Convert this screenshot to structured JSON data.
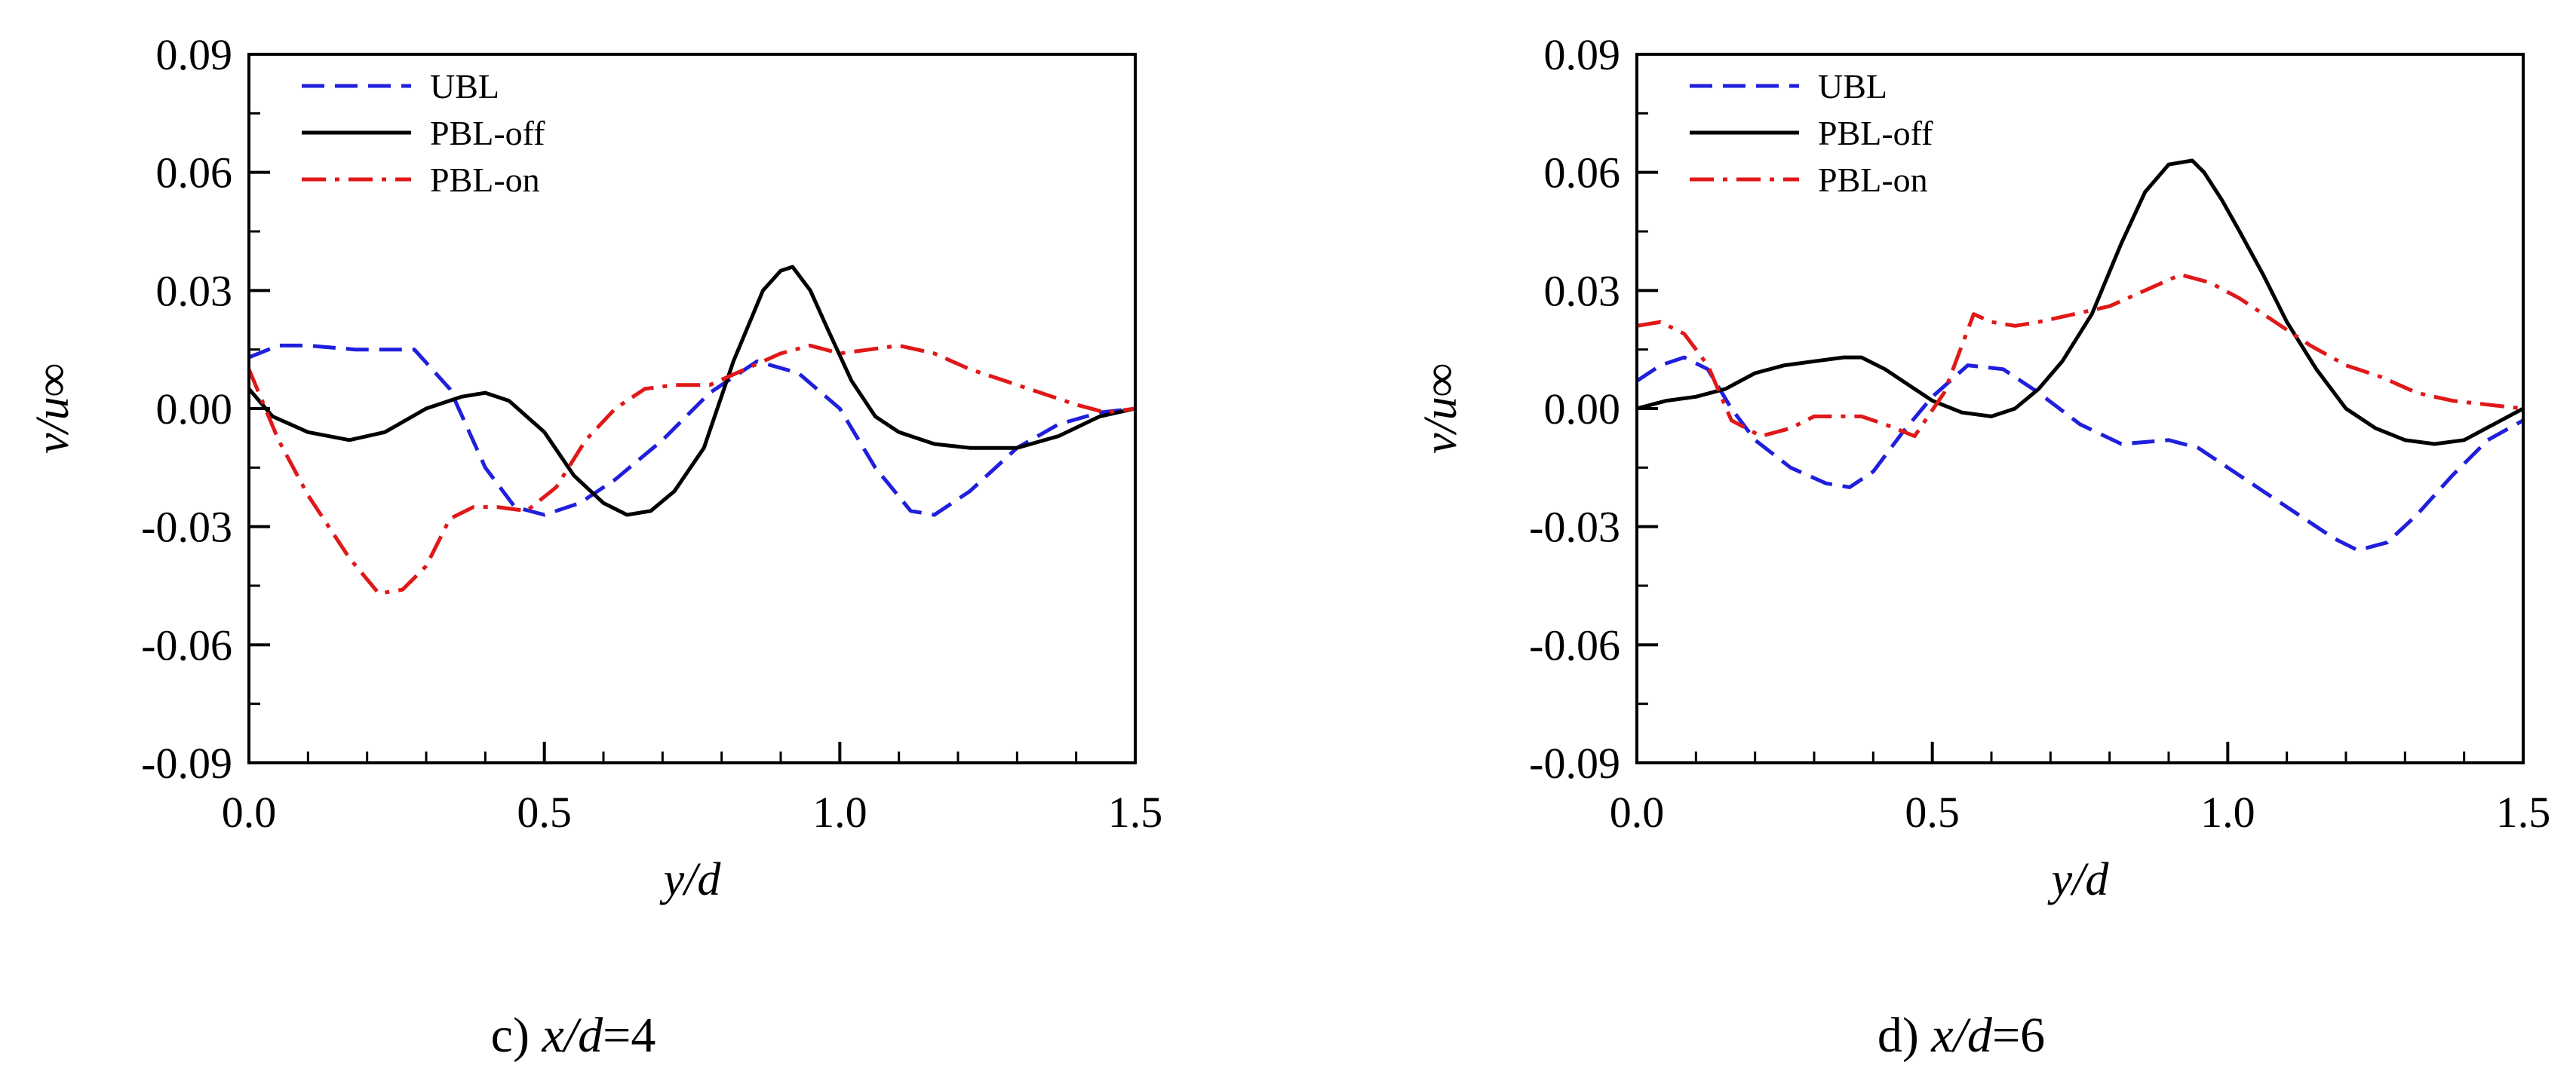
{
  "chart_data": [
    {
      "type": "line",
      "caption": {
        "prefix": "c) ",
        "var": "x/d",
        "suffix": "=4"
      },
      "xlabel": "y/d",
      "ylabel": "v/u∞",
      "xlim": [
        0,
        1.5
      ],
      "ylim": [
        -0.09,
        0.09
      ],
      "xticks": [
        0.0,
        0.5,
        1.0,
        1.5
      ],
      "xtick_labels": [
        "0.0",
        "0.5",
        "1.0",
        "1.5"
      ],
      "yticks": [
        -0.09,
        -0.06,
        -0.03,
        0.0,
        0.03,
        0.06,
        0.09
      ],
      "ytick_labels": [
        "-0.09",
        "-0.06",
        "-0.03",
        "0.00",
        "0.03",
        "0.06",
        "0.09"
      ],
      "legend_position": "top-left",
      "series": [
        {
          "name": "UBL",
          "color": "#1f1fdc",
          "dash": "dashed",
          "x": [
            0.0,
            0.05,
            0.1,
            0.18,
            0.28,
            0.34,
            0.4,
            0.45,
            0.5,
            0.56,
            0.62,
            0.7,
            0.78,
            0.86,
            0.93,
            1.0,
            1.06,
            1.12,
            1.16,
            1.22,
            1.3,
            1.37,
            1.44,
            1.5
          ],
          "y": [
            0.013,
            0.016,
            0.016,
            0.015,
            0.015,
            0.005,
            -0.015,
            -0.025,
            -0.027,
            -0.024,
            -0.018,
            -0.008,
            0.004,
            0.012,
            0.009,
            0.0,
            -0.015,
            -0.026,
            -0.027,
            -0.021,
            -0.01,
            -0.004,
            -0.001,
            0.0
          ]
        },
        {
          "name": "PBL-off",
          "color": "#000000",
          "dash": "solid",
          "x": [
            0.0,
            0.04,
            0.1,
            0.17,
            0.23,
            0.3,
            0.36,
            0.4,
            0.44,
            0.5,
            0.55,
            0.6,
            0.64,
            0.68,
            0.72,
            0.77,
            0.82,
            0.87,
            0.9,
            0.92,
            0.95,
            0.98,
            1.02,
            1.06,
            1.1,
            1.16,
            1.22,
            1.3,
            1.37,
            1.44,
            1.5
          ],
          "y": [
            0.005,
            -0.002,
            -0.006,
            -0.008,
            -0.006,
            0.0,
            0.003,
            0.004,
            0.002,
            -0.006,
            -0.017,
            -0.024,
            -0.027,
            -0.026,
            -0.021,
            -0.01,
            0.012,
            0.03,
            0.035,
            0.036,
            0.03,
            0.02,
            0.007,
            -0.002,
            -0.006,
            -0.009,
            -0.01,
            -0.01,
            -0.007,
            -0.002,
            0.0
          ]
        },
        {
          "name": "PBL-on",
          "color": "#e01818",
          "dash": "dash-dot",
          "x": [
            0.0,
            0.05,
            0.1,
            0.17,
            0.22,
            0.26,
            0.3,
            0.34,
            0.38,
            0.42,
            0.47,
            0.52,
            0.57,
            0.62,
            0.67,
            0.72,
            0.78,
            0.84,
            0.9,
            0.95,
            1.0,
            1.05,
            1.1,
            1.16,
            1.22,
            1.28,
            1.34,
            1.4,
            1.45,
            1.5
          ],
          "y": [
            0.01,
            -0.008,
            -0.022,
            -0.038,
            -0.047,
            -0.046,
            -0.04,
            -0.028,
            -0.025,
            -0.025,
            -0.026,
            -0.02,
            -0.008,
            0.0,
            0.005,
            0.006,
            0.006,
            0.01,
            0.014,
            0.016,
            0.014,
            0.015,
            0.016,
            0.014,
            0.01,
            0.007,
            0.004,
            0.001,
            -0.001,
            0.0
          ]
        }
      ]
    },
    {
      "type": "line",
      "caption": {
        "prefix": "d) ",
        "var": "x/d",
        "suffix": "=6"
      },
      "xlabel": "y/d",
      "ylabel": "v/u∞",
      "xlim": [
        0,
        1.5
      ],
      "ylim": [
        -0.09,
        0.09
      ],
      "xticks": [
        0.0,
        0.5,
        1.0,
        1.5
      ],
      "xtick_labels": [
        "0.0",
        "0.5",
        "1.0",
        "1.5"
      ],
      "yticks": [
        -0.09,
        -0.06,
        -0.03,
        0.0,
        0.03,
        0.06,
        0.09
      ],
      "ytick_labels": [
        "-0.09",
        "-0.06",
        "-0.03",
        "0.00",
        "0.03",
        "0.06",
        "0.09"
      ],
      "legend_position": "top-left",
      "series": [
        {
          "name": "UBL",
          "color": "#1f1fdc",
          "dash": "dashed",
          "x": [
            0.0,
            0.04,
            0.08,
            0.12,
            0.16,
            0.2,
            0.26,
            0.32,
            0.36,
            0.4,
            0.45,
            0.5,
            0.56,
            0.62,
            0.68,
            0.75,
            0.82,
            0.9,
            0.95,
            1.0,
            1.06,
            1.12,
            1.18,
            1.22,
            1.27,
            1.32,
            1.38,
            1.44,
            1.5
          ],
          "y": [
            0.007,
            0.011,
            0.013,
            0.01,
            0.0,
            -0.008,
            -0.015,
            -0.019,
            -0.02,
            -0.016,
            -0.006,
            0.003,
            0.011,
            0.01,
            0.004,
            -0.004,
            -0.009,
            -0.008,
            -0.01,
            -0.015,
            -0.021,
            -0.027,
            -0.033,
            -0.036,
            -0.034,
            -0.027,
            -0.017,
            -0.008,
            -0.003
          ]
        },
        {
          "name": "PBL-off",
          "color": "#000000",
          "dash": "solid",
          "x": [
            0.0,
            0.05,
            0.1,
            0.15,
            0.2,
            0.25,
            0.3,
            0.35,
            0.38,
            0.42,
            0.46,
            0.5,
            0.55,
            0.6,
            0.64,
            0.68,
            0.72,
            0.77,
            0.82,
            0.86,
            0.9,
            0.94,
            0.96,
            0.99,
            1.02,
            1.06,
            1.1,
            1.15,
            1.2,
            1.25,
            1.3,
            1.35,
            1.4,
            1.45,
            1.5
          ],
          "y": [
            0.0,
            0.002,
            0.003,
            0.005,
            0.009,
            0.011,
            0.012,
            0.013,
            0.013,
            0.01,
            0.006,
            0.002,
            -0.001,
            -0.002,
            0.0,
            0.005,
            0.012,
            0.024,
            0.042,
            0.055,
            0.062,
            0.063,
            0.06,
            0.053,
            0.045,
            0.034,
            0.022,
            0.01,
            0.0,
            -0.005,
            -0.008,
            -0.009,
            -0.008,
            -0.004,
            0.0
          ]
        },
        {
          "name": "PBL-on",
          "color": "#e01818",
          "dash": "dash-dot",
          "x": [
            0.0,
            0.04,
            0.08,
            0.12,
            0.16,
            0.21,
            0.26,
            0.3,
            0.34,
            0.38,
            0.42,
            0.47,
            0.52,
            0.57,
            0.6,
            0.64,
            0.68,
            0.74,
            0.8,
            0.86,
            0.92,
            0.97,
            1.02,
            1.08,
            1.14,
            1.2,
            1.26,
            1.32,
            1.38,
            1.44,
            1.5
          ],
          "y": [
            0.021,
            0.022,
            0.019,
            0.011,
            -0.003,
            -0.007,
            -0.005,
            -0.002,
            -0.002,
            -0.002,
            -0.004,
            -0.007,
            0.004,
            0.024,
            0.022,
            0.021,
            0.022,
            0.024,
            0.026,
            0.03,
            0.034,
            0.032,
            0.028,
            0.022,
            0.016,
            0.011,
            0.008,
            0.004,
            0.002,
            0.001,
            0.0
          ]
        }
      ]
    }
  ]
}
